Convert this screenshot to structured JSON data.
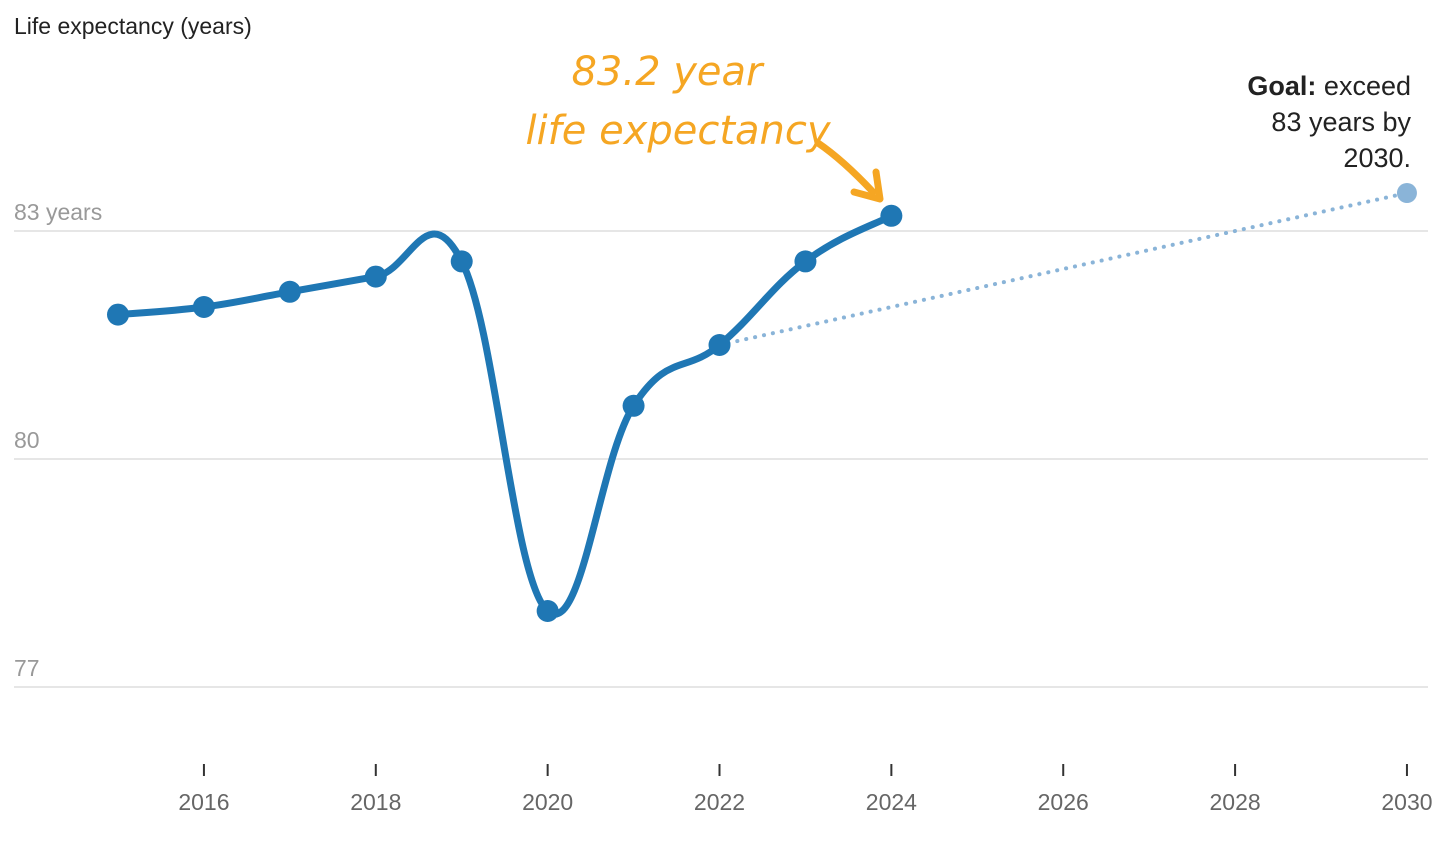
{
  "chart_data": {
    "type": "line",
    "ylabel": "Life expectancy (years)",
    "ylim": [
      75.5,
      84.5
    ],
    "xlim": [
      2015,
      2030
    ],
    "yticks": [
      {
        "value": 83,
        "label": "83 years"
      },
      {
        "value": 80,
        "label": "80"
      },
      {
        "value": 77,
        "label": "77"
      }
    ],
    "xticks": [
      "2016",
      "2018",
      "2020",
      "2022",
      "2024",
      "2026",
      "2028",
      "2030"
    ],
    "series": [
      {
        "color": "#1f77b4",
        "x": [
          2015,
          2016,
          2017,
          2018,
          2019,
          2020,
          2021,
          2022,
          2023,
          2024
        ],
        "y": [
          81.9,
          82.0,
          82.2,
          82.4,
          82.6,
          78.0,
          80.7,
          81.5,
          82.6,
          83.2
        ]
      }
    ],
    "projection": {
      "color": "#8ab4d8",
      "from": {
        "x": 2022,
        "y": 81.5
      },
      "to": {
        "x": 2030,
        "y": 83.5
      }
    },
    "annotations": {
      "highlight_line1": "83.2 year",
      "highlight_line2": "life expectancy",
      "highlight_color": "#f5a623",
      "goal_bold": "Goal:",
      "goal_line1": "exceed",
      "goal_line2": "83 years by",
      "goal_line3": "2030."
    }
  }
}
